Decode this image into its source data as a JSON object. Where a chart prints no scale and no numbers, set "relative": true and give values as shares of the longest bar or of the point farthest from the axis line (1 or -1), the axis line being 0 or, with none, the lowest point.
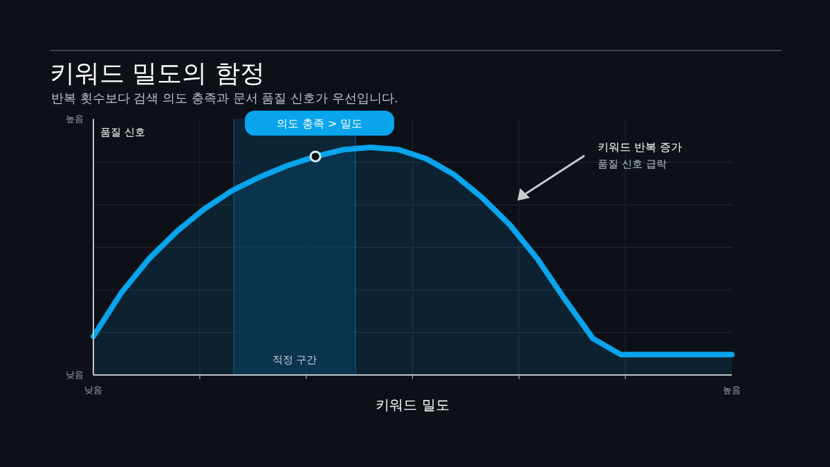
{
  "chart_data": {
    "type": "area",
    "title": "키워드 밀도의 함정",
    "subtitle": "반복 횟수보다 검색 의도 충족과 문서 품질 신호가 우선입니다.",
    "xlabel": "키워드 밀도",
    "ylabel": "품질 신호",
    "relative": true,
    "categories": [
      "낮음",
      null,
      null,
      null,
      null,
      null,
      null,
      null,
      null,
      null,
      null,
      null,
      null,
      null,
      null,
      null,
      null,
      null,
      null,
      null,
      null,
      null,
      null,
      "높음"
    ],
    "grid": true,
    "series": [
      {
        "color": "#08a4ec",
        "values": [
          0.17,
          0.36,
          0.51,
          0.63,
          0.73,
          0.81,
          0.87,
          0.92,
          0.96,
          0.99,
          1,
          0.99,
          0.95,
          0.88,
          0.78,
          0.66,
          0.51,
          0.33,
          0.16,
          0.09,
          0.09,
          0.09,
          0.09,
          0.09
        ]
      },
      {
        "type": "scatter",
        "color": "#d8ecf8",
        "marker": "circle",
        "values": [
          null,
          null,
          null,
          null,
          null,
          null,
          null,
          null,
          0.96,
          null,
          null,
          null,
          null,
          null,
          null,
          null,
          null,
          null,
          null,
          null,
          null,
          null,
          null,
          null
        ]
      }
    ],
    "annotations": [
      "의도 충족 > 밀도",
      "키워드 반복 증가",
      "품질 신호 급락",
      "높음",
      "낮음",
      "적정 구간"
    ]
  }
}
